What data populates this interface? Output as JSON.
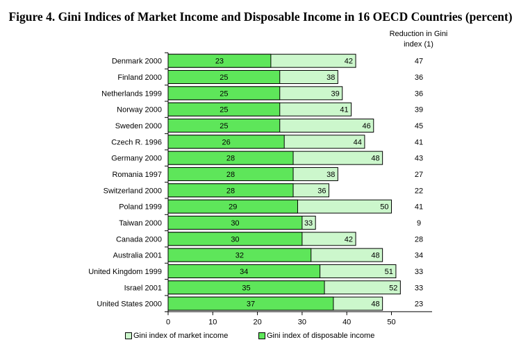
{
  "chart_data": {
    "type": "bar",
    "stacked_overlay": true,
    "title": "Figure 4. Gini Indices of Market Income and Disposable Income in 16 OECD Countries (percent)",
    "categories": [
      "Denmark 2000",
      "Finland 2000",
      "Netherlands 1999",
      "Norway 2000",
      "Sweden 2000",
      "Czech R. 1996",
      "Germany 2000",
      "Romania 1997",
      "Switzerland 2000",
      "Poland 1999",
      "Taiwan 2000",
      "Canada 2000",
      "Australia 2001",
      "United Kingdom 1999",
      "Israel 2001",
      "United States 2000"
    ],
    "series": [
      {
        "name": "Gini index of market income",
        "color": "#ccf7cc",
        "values": [
          42,
          38,
          39,
          41,
          46,
          44,
          48,
          38,
          36,
          50,
          33,
          42,
          48,
          51,
          52,
          48
        ]
      },
      {
        "name": "Gini index of disposable income",
        "color": "#5ee65a",
        "values": [
          23,
          25,
          25,
          25,
          25,
          26,
          28,
          28,
          28,
          29,
          30,
          30,
          32,
          34,
          35,
          37
        ]
      }
    ],
    "reduction_header": "Reduction in Gini index (1)",
    "reduction": [
      47,
      36,
      36,
      39,
      45,
      41,
      43,
      27,
      22,
      41,
      9,
      28,
      34,
      33,
      33,
      23
    ],
    "xticks": [
      0,
      10,
      20,
      30,
      40,
      50
    ],
    "xlim": [
      0,
      59
    ],
    "xlabel": "",
    "ylabel": "",
    "legend_position": "bottom"
  }
}
